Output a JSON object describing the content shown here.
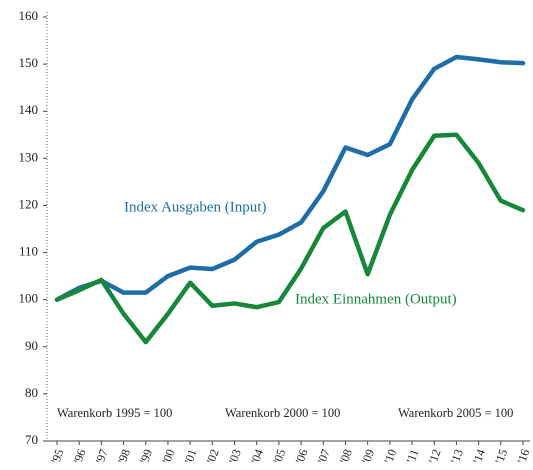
{
  "chart_data": {
    "type": "line",
    "categories": [
      "'95",
      "'96",
      "'97",
      "'98",
      "'99",
      "'00",
      "'01",
      "'02",
      "'03",
      "'04",
      "'05",
      "'06",
      "'07",
      "'08",
      "'09",
      "'10",
      "'11",
      "'12",
      "'13",
      "'14",
      "'15",
      "'16"
    ],
    "series": [
      {
        "name": "Index Ausgaben (Input)",
        "color": "#1f6da6",
        "values": [
          100,
          102.5,
          104,
          101.5,
          101.5,
          105,
          106.8,
          106.5,
          108.5,
          112.3,
          113.8,
          116.4,
          123,
          132.3,
          130.7,
          133,
          142.5,
          149,
          151.5,
          151,
          150.4,
          150.2
        ]
      },
      {
        "name": "Index Einnahmen (Output)",
        "color": "#17873a",
        "values": [
          100,
          102,
          104.2,
          97,
          91,
          97,
          103.6,
          98.7,
          99.2,
          98.4,
          99.5,
          106.6,
          115.2,
          118.7,
          105.4,
          118,
          127.5,
          134.8,
          135,
          129,
          121,
          119
        ]
      }
    ],
    "annotations": [
      "Warenkorb 1995 = 100",
      "Warenkorb 2000 = 100",
      "Warenkorb 2005 = 100"
    ],
    "ylim": [
      70,
      160
    ],
    "yticks": [
      70,
      80,
      90,
      100,
      110,
      120,
      130,
      140,
      150,
      160
    ]
  }
}
